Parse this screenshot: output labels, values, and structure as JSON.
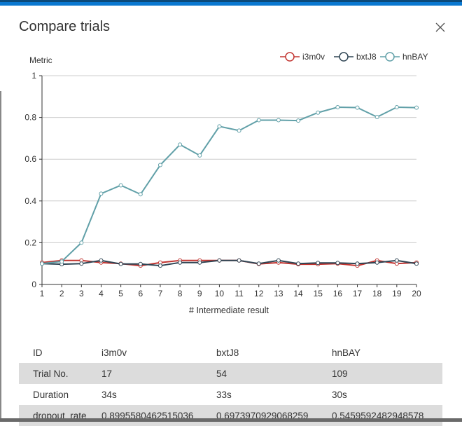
{
  "dialog": {
    "title": "Compare trials",
    "close_icon": "close-icon"
  },
  "chart_data": {
    "type": "line",
    "ylabel": "Metric",
    "xlabel": "# Intermediate result",
    "ylim": [
      0,
      1
    ],
    "yticks": [
      "0",
      "0.2",
      "0.4",
      "0.6",
      "0.8",
      "1"
    ],
    "x": [
      1,
      2,
      3,
      4,
      5,
      6,
      7,
      8,
      9,
      10,
      11,
      12,
      13,
      14,
      15,
      16,
      17,
      18,
      19,
      20
    ],
    "grid": true,
    "legend": "top-right",
    "series": [
      {
        "name": "i3m0v",
        "color": "#c23531",
        "values": [
          0.105,
          0.115,
          0.115,
          0.105,
          0.1,
          0.09,
          0.105,
          0.115,
          0.115,
          0.115,
          0.115,
          0.098,
          0.105,
          0.097,
          0.097,
          0.1,
          0.09,
          0.115,
          0.1,
          0.105
        ]
      },
      {
        "name": "bxtJ8",
        "color": "#2f4554",
        "values": [
          0.1,
          0.097,
          0.1,
          0.115,
          0.098,
          0.098,
          0.09,
          0.105,
          0.105,
          0.115,
          0.115,
          0.1,
          0.115,
          0.1,
          0.103,
          0.103,
          0.1,
          0.105,
          0.115,
          0.1
        ]
      },
      {
        "name": "hnBAY",
        "color": "#61a0a8",
        "values": [
          0.1,
          0.11,
          0.2,
          0.435,
          0.475,
          0.432,
          0.572,
          0.67,
          0.618,
          0.757,
          0.737,
          0.787,
          0.787,
          0.785,
          0.823,
          0.849,
          0.847,
          0.802,
          0.849,
          0.847
        ]
      }
    ]
  },
  "table": {
    "header": [
      "ID",
      "i3m0v",
      "bxtJ8",
      "hnBAY"
    ],
    "rows": [
      [
        "Trial No.",
        "17",
        "54",
        "109"
      ],
      [
        "Duration",
        "34s",
        "33s",
        "30s"
      ],
      [
        "dropout_rate",
        "0.8995580462515036",
        "0.6973970929068259",
        "0.5459592482948578"
      ]
    ]
  }
}
